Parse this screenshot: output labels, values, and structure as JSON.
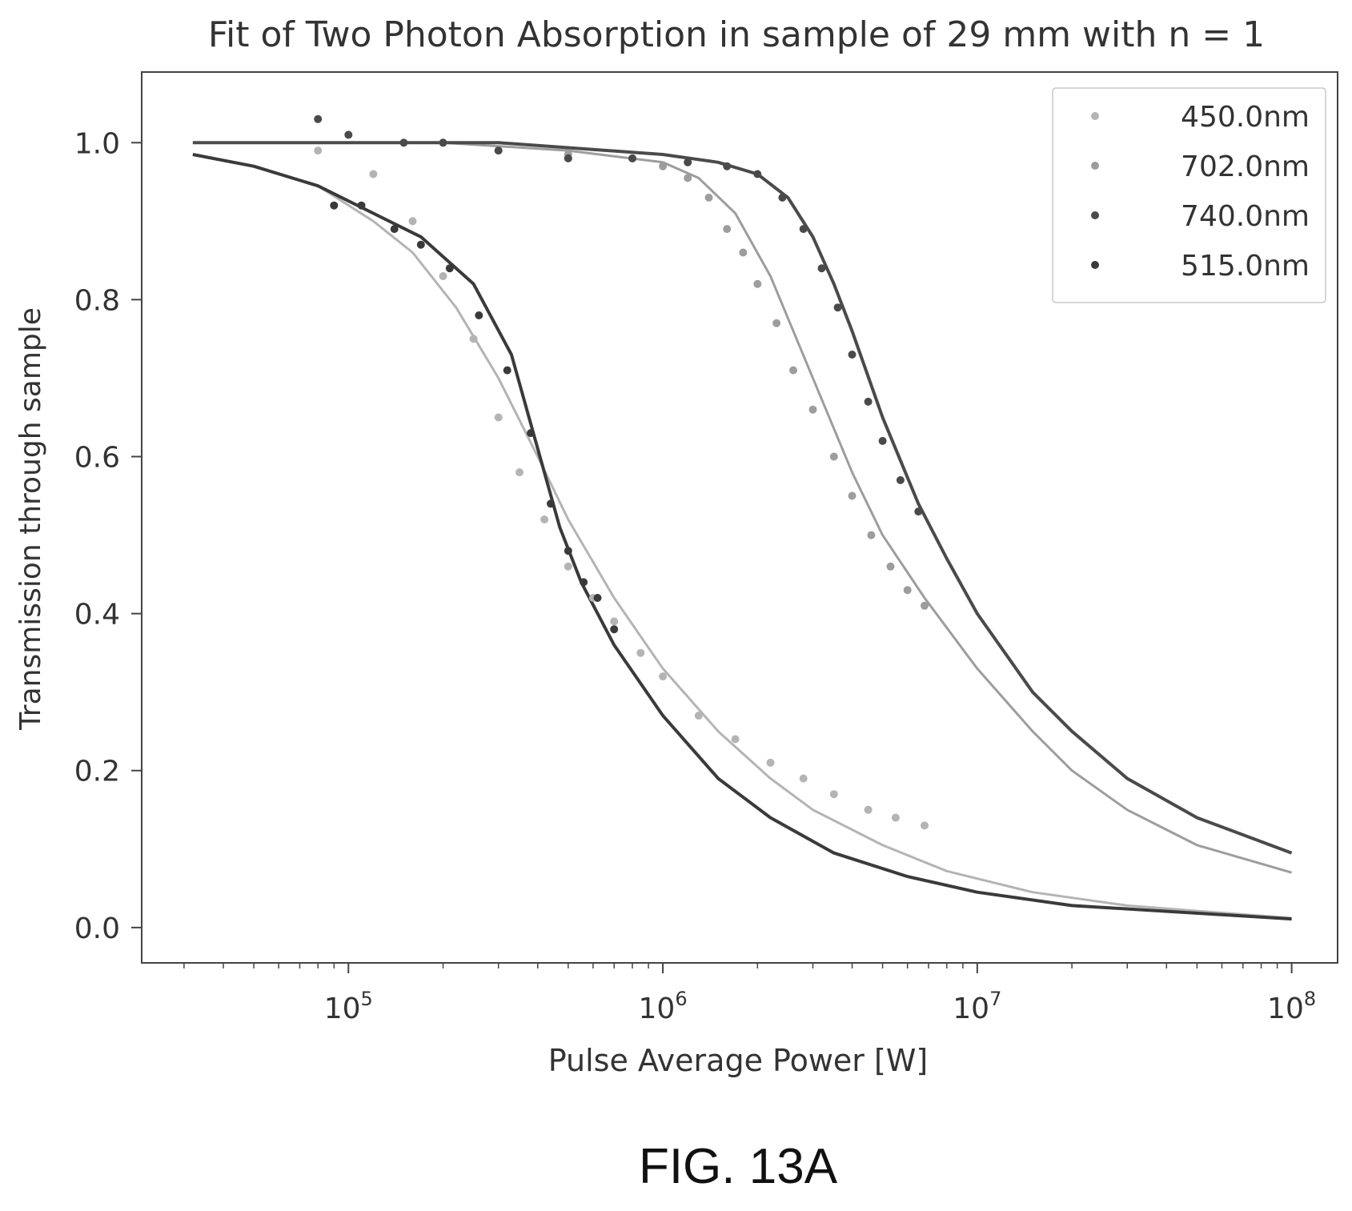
{
  "chart_data": {
    "type": "scatter",
    "title": "Fit of Two Photon Absorption in sample of 29 mm with n = 1",
    "xlabel": "Pulse Average Power [W]",
    "ylabel": "Transmission through sample",
    "x_scale": "log",
    "xlim": [
      22000,
      140000000
    ],
    "ylim": [
      -0.045,
      1.09
    ],
    "x_ticks": [
      {
        "value": 100000,
        "base": "10",
        "exp": "5"
      },
      {
        "value": 1000000,
        "base": "10",
        "exp": "6"
      },
      {
        "value": 10000000,
        "base": "10",
        "exp": "7"
      },
      {
        "value": 100000000,
        "base": "10",
        "exp": "8"
      }
    ],
    "y_ticks": [
      {
        "value": 0.0,
        "label": "0.0"
      },
      {
        "value": 0.2,
        "label": "0.2"
      },
      {
        "value": 0.4,
        "label": "0.4"
      },
      {
        "value": 0.6,
        "label": "0.6"
      },
      {
        "value": 0.8,
        "label": "0.8"
      },
      {
        "value": 1.0,
        "label": "1.0"
      }
    ],
    "grid": false,
    "legend_position": "top-right",
    "series": [
      {
        "name": "450.0nm",
        "color": "#b4b4b4",
        "marker": "dot",
        "points": [
          [
            80000,
            0.99
          ],
          [
            120000,
            0.96
          ],
          [
            160000,
            0.9
          ],
          [
            200000,
            0.83
          ],
          [
            250000,
            0.75
          ],
          [
            300000,
            0.65
          ],
          [
            350000,
            0.58
          ],
          [
            420000,
            0.52
          ],
          [
            500000,
            0.46
          ],
          [
            600000,
            0.42
          ],
          [
            700000,
            0.39
          ],
          [
            850000,
            0.35
          ],
          [
            1000000,
            0.32
          ],
          [
            1300000,
            0.27
          ],
          [
            1700000,
            0.24
          ],
          [
            2200000,
            0.21
          ],
          [
            2800000,
            0.19
          ],
          [
            3500000,
            0.17
          ],
          [
            4500000,
            0.15
          ],
          [
            5500000,
            0.14
          ],
          [
            6800000,
            0.13
          ]
        ],
        "fit": [
          [
            32000,
            0.985
          ],
          [
            50000,
            0.97
          ],
          [
            80000,
            0.945
          ],
          [
            120000,
            0.9
          ],
          [
            160000,
            0.86
          ],
          [
            220000,
            0.79
          ],
          [
            300000,
            0.7
          ],
          [
            400000,
            0.6
          ],
          [
            500000,
            0.52
          ],
          [
            700000,
            0.42
          ],
          [
            1000000,
            0.33
          ],
          [
            1500000,
            0.25
          ],
          [
            2200000,
            0.19
          ],
          [
            3000000,
            0.15
          ],
          [
            5000000,
            0.105
          ],
          [
            8000000,
            0.072
          ],
          [
            15000000,
            0.045
          ],
          [
            30000000,
            0.028
          ],
          [
            100000000,
            0.012
          ]
        ]
      },
      {
        "name": "702.0nm",
        "color": "#9d9d9d",
        "marker": "dot",
        "points": [
          [
            200000,
            1.0
          ],
          [
            300000,
            0.99
          ],
          [
            500000,
            0.985
          ],
          [
            800000,
            0.98
          ],
          [
            1000000,
            0.97
          ],
          [
            1200000,
            0.955
          ],
          [
            1400000,
            0.93
          ],
          [
            1600000,
            0.89
          ],
          [
            1800000,
            0.86
          ],
          [
            2000000,
            0.82
          ],
          [
            2300000,
            0.77
          ],
          [
            2600000,
            0.71
          ],
          [
            3000000,
            0.66
          ],
          [
            3500000,
            0.6
          ],
          [
            4000000,
            0.55
          ],
          [
            4600000,
            0.5
          ],
          [
            5300000,
            0.46
          ],
          [
            6000000,
            0.43
          ],
          [
            6800000,
            0.41
          ]
        ],
        "fit": [
          [
            32000,
            1.0
          ],
          [
            200000,
            1.0
          ],
          [
            500000,
            0.99
          ],
          [
            1000000,
            0.975
          ],
          [
            1300000,
            0.955
          ],
          [
            1700000,
            0.91
          ],
          [
            2200000,
            0.83
          ],
          [
            3000000,
            0.7
          ],
          [
            4000000,
            0.58
          ],
          [
            5000000,
            0.5
          ],
          [
            6800000,
            0.42
          ],
          [
            10000000,
            0.33
          ],
          [
            15000000,
            0.25
          ],
          [
            20000000,
            0.2
          ],
          [
            30000000,
            0.15
          ],
          [
            50000000,
            0.105
          ],
          [
            100000000,
            0.07
          ]
        ]
      },
      {
        "name": "740.0nm",
        "color": "#4a4a4a",
        "marker": "dot",
        "points": [
          [
            80000,
            1.03
          ],
          [
            100000,
            1.01
          ],
          [
            150000,
            1.0
          ],
          [
            200000,
            1.0
          ],
          [
            300000,
            0.99
          ],
          [
            500000,
            0.98
          ],
          [
            800000,
            0.98
          ],
          [
            1200000,
            0.975
          ],
          [
            1600000,
            0.97
          ],
          [
            2000000,
            0.96
          ],
          [
            2400000,
            0.93
          ],
          [
            2800000,
            0.89
          ],
          [
            3200000,
            0.84
          ],
          [
            3600000,
            0.79
          ],
          [
            4000000,
            0.73
          ],
          [
            4500000,
            0.67
          ],
          [
            5000000,
            0.62
          ],
          [
            5700000,
            0.57
          ],
          [
            6500000,
            0.53
          ]
        ],
        "fit": [
          [
            32000,
            1.0
          ],
          [
            300000,
            1.0
          ],
          [
            1000000,
            0.985
          ],
          [
            1500000,
            0.975
          ],
          [
            2000000,
            0.96
          ],
          [
            2500000,
            0.93
          ],
          [
            3000000,
            0.88
          ],
          [
            3500000,
            0.82
          ],
          [
            4000000,
            0.76
          ],
          [
            5000000,
            0.65
          ],
          [
            6500000,
            0.54
          ],
          [
            8000000,
            0.47
          ],
          [
            10000000,
            0.4
          ],
          [
            15000000,
            0.3
          ],
          [
            20000000,
            0.25
          ],
          [
            30000000,
            0.19
          ],
          [
            50000000,
            0.14
          ],
          [
            100000000,
            0.095
          ]
        ]
      },
      {
        "name": "515.0nm",
        "color": "#3a3a3a",
        "marker": "dot",
        "points": [
          [
            90000,
            0.92
          ],
          [
            110000,
            0.92
          ],
          [
            140000,
            0.89
          ],
          [
            170000,
            0.87
          ],
          [
            210000,
            0.84
          ],
          [
            260000,
            0.78
          ],
          [
            320000,
            0.71
          ],
          [
            380000,
            0.63
          ],
          [
            440000,
            0.54
          ],
          [
            500000,
            0.48
          ],
          [
            560000,
            0.44
          ],
          [
            620000,
            0.42
          ],
          [
            700000,
            0.38
          ]
        ],
        "fit": [
          [
            32000,
            0.985
          ],
          [
            50000,
            0.97
          ],
          [
            80000,
            0.945
          ],
          [
            120000,
            0.91
          ],
          [
            170000,
            0.88
          ],
          [
            250000,
            0.82
          ],
          [
            330000,
            0.73
          ],
          [
            400000,
            0.61
          ],
          [
            470000,
            0.51
          ],
          [
            550000,
            0.44
          ],
          [
            700000,
            0.36
          ],
          [
            1000000,
            0.27
          ],
          [
            1500000,
            0.19
          ],
          [
            2200000,
            0.14
          ],
          [
            3500000,
            0.095
          ],
          [
            6000000,
            0.065
          ],
          [
            10000000,
            0.045
          ],
          [
            20000000,
            0.028
          ],
          [
            100000000,
            0.011
          ]
        ]
      }
    ]
  },
  "caption": "FIG. 13A"
}
